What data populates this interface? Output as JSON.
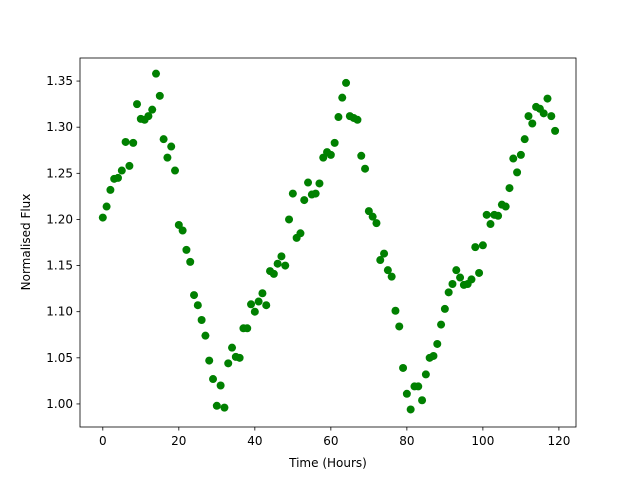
{
  "chart_data": {
    "type": "scatter",
    "xlabel": "Time (Hours)",
    "ylabel": "Normalised Flux",
    "color": "#008000",
    "x": [
      0,
      1,
      2,
      3,
      4,
      5,
      6,
      7,
      8,
      9,
      10,
      11,
      12,
      13,
      14,
      15,
      16,
      17,
      18,
      19,
      20,
      21,
      22,
      23,
      24,
      25,
      26,
      27,
      28,
      29,
      30,
      31,
      32,
      33,
      34,
      35,
      36,
      37,
      38,
      39,
      40,
      41,
      42,
      43,
      44,
      45,
      46,
      47,
      48,
      49,
      50,
      51,
      52,
      53,
      54,
      55,
      56,
      57,
      58,
      59,
      60,
      61,
      62,
      63,
      64,
      65,
      66,
      67,
      68,
      69,
      70,
      71,
      72,
      73,
      74,
      75,
      76,
      77,
      78,
      79,
      80,
      81,
      82,
      83,
      84,
      85,
      86,
      87,
      88,
      89,
      90,
      91,
      92,
      93,
      94,
      95,
      96,
      97,
      98,
      99,
      100,
      101,
      102,
      103,
      104,
      105,
      106,
      107,
      108,
      109,
      110,
      111,
      112,
      113,
      114,
      115,
      116,
      117,
      118,
      119
    ],
    "values": [
      1.202,
      1.214,
      1.232,
      1.244,
      1.245,
      1.253,
      1.284,
      1.258,
      1.283,
      1.325,
      1.309,
      1.308,
      1.312,
      1.319,
      1.358,
      1.334,
      1.287,
      1.267,
      1.279,
      1.253,
      1.194,
      1.188,
      1.167,
      1.154,
      1.118,
      1.107,
      1.091,
      1.074,
      1.047,
      1.027,
      0.998,
      1.02,
      0.996,
      1.044,
      1.061,
      1.051,
      1.05,
      1.082,
      1.082,
      1.108,
      1.1,
      1.111,
      1.12,
      1.107,
      1.144,
      1.141,
      1.152,
      1.16,
      1.15,
      1.2,
      1.228,
      1.18,
      1.185,
      1.221,
      1.24,
      1.227,
      1.228,
      1.239,
      1.267,
      1.273,
      1.27,
      1.283,
      1.311,
      1.332,
      1.348,
      1.312,
      1.31,
      1.308,
      1.269,
      1.255,
      1.209,
      1.203,
      1.196,
      1.156,
      1.163,
      1.145,
      1.138,
      1.101,
      1.084,
      1.039,
      1.011,
      0.994,
      1.019,
      1.019,
      1.004,
      1.032,
      1.05,
      1.052,
      1.065,
      1.086,
      1.103,
      1.121,
      1.13,
      1.145,
      1.137,
      1.129,
      1.13,
      1.135,
      1.17,
      1.142,
      1.172,
      1.205,
      1.195,
      1.205,
      1.204,
      1.216,
      1.214,
      1.234,
      1.266,
      1.251,
      1.27,
      1.287,
      1.312,
      1.304,
      1.322,
      1.32,
      1.315,
      1.331,
      1.312,
      1.296
    ],
    "xlim": [
      -6,
      124.5
    ],
    "ylim": [
      0.975,
      1.375
    ],
    "xticks": [
      0,
      20,
      40,
      60,
      80,
      100,
      120
    ],
    "yticks": [
      {
        "value": 1,
        "label": "1.00"
      },
      1.05,
      {
        "value": 1.1,
        "label": "1.10"
      },
      1.15,
      {
        "value": 1.2,
        "label": "1.20"
      },
      1.25,
      {
        "value": 1.3,
        "label": "1.30"
      },
      1.35
    ]
  }
}
